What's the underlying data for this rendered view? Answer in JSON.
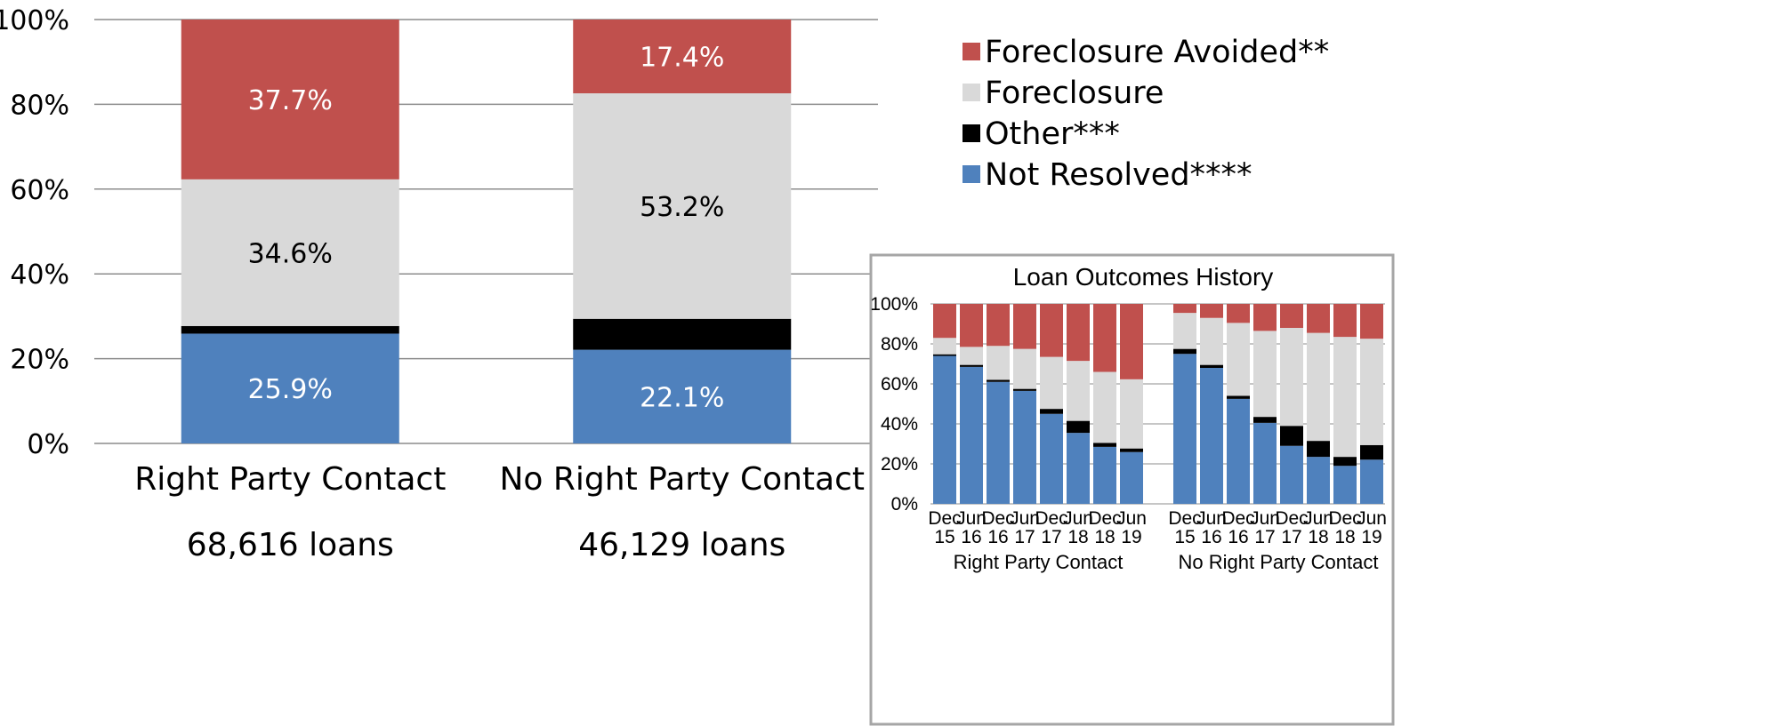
{
  "colors": {
    "foreclosure_avoided": "#c0504d",
    "foreclosure": "#d9d9d9",
    "other": "#000000",
    "not_resolved": "#4f81bd",
    "grid": "#8c8c8c",
    "inset_border": "#a6a6a6"
  },
  "legend": [
    {
      "label": "Foreclosure Avoided**",
      "color_key": "foreclosure_avoided"
    },
    {
      "label": "Foreclosure",
      "color_key": "foreclosure"
    },
    {
      "label": "Other***",
      "color_key": "other"
    },
    {
      "label": "Not Resolved****",
      "color_key": "not_resolved"
    }
  ],
  "chart_data": [
    {
      "type": "bar",
      "stacked": true,
      "title": "",
      "yticks": [
        "0%",
        "20%",
        "40%",
        "60%",
        "80%",
        "100%"
      ],
      "ylim": [
        0,
        100
      ],
      "grid": true,
      "legend_position": "top-right",
      "categories": [
        "Right Party Contact",
        "No Right Party Contact"
      ],
      "category_counts": [
        "68,616 loans",
        "46,129 loans"
      ],
      "series": [
        {
          "name": "Not Resolved****",
          "color_key": "not_resolved",
          "values": [
            25.9,
            22.1
          ],
          "labels": [
            "25.9%",
            "22.1%"
          ]
        },
        {
          "name": "Other***",
          "color_key": "other",
          "values": [
            1.8,
            7.3
          ],
          "labels": [
            "",
            ""
          ]
        },
        {
          "name": "Foreclosure",
          "color_key": "foreclosure",
          "values": [
            34.6,
            53.2
          ],
          "labels": [
            "34.6%",
            "53.2%"
          ]
        },
        {
          "name": "Foreclosure Avoided**",
          "color_key": "foreclosure_avoided",
          "values": [
            37.7,
            17.4
          ],
          "labels": [
            "37.7%",
            "17.4%"
          ]
        }
      ]
    },
    {
      "type": "bar",
      "stacked": true,
      "title": "Loan Outcomes History",
      "yticks": [
        "0%",
        "20%",
        "40%",
        "60%",
        "80%",
        "100%"
      ],
      "ylim": [
        0,
        100
      ],
      "grid": true,
      "groups": [
        {
          "name": "Right Party Contact",
          "periods": [
            [
              "Dec",
              "15"
            ],
            [
              "Jun",
              "16"
            ],
            [
              "Dec",
              "16"
            ],
            [
              "Jun",
              "17"
            ],
            [
              "Dec",
              "17"
            ],
            [
              "Jun",
              "18"
            ],
            [
              "Dec",
              "18"
            ],
            [
              "Jun",
              "19"
            ]
          ],
          "not_resolved": [
            74,
            68.5,
            61,
            56.5,
            45,
            35.5,
            28.5,
            25.9
          ],
          "other": [
            0.8,
            1,
            1,
            1,
            2.5,
            6,
            2,
            1.8
          ],
          "foreclosure": [
            8.2,
            9,
            17,
            20,
            26,
            30,
            35.5,
            34.6
          ],
          "foreclosure_avoided": [
            17,
            21.5,
            21,
            22.5,
            26.5,
            28.5,
            34,
            37.7
          ]
        },
        {
          "name": "No Right Party Contact",
          "periods": [
            [
              "Dec",
              "15"
            ],
            [
              "Jun",
              "16"
            ],
            [
              "Dec",
              "16"
            ],
            [
              "Jun",
              "17"
            ],
            [
              "Dec",
              "17"
            ],
            [
              "Jun",
              "18"
            ],
            [
              "Dec",
              "18"
            ],
            [
              "Jun",
              "19"
            ]
          ],
          "not_resolved": [
            75,
            68,
            52.5,
            40.5,
            29,
            23.5,
            19,
            22.1
          ],
          "other": [
            2.5,
            1.5,
            1.5,
            3,
            10,
            8,
            4.5,
            7.3
          ],
          "foreclosure": [
            18,
            23.5,
            36.5,
            43,
            49,
            54,
            60,
            53.2
          ],
          "foreclosure_avoided": [
            4.5,
            7,
            9.5,
            13.5,
            12,
            14.5,
            16.5,
            17.4
          ]
        }
      ]
    }
  ]
}
